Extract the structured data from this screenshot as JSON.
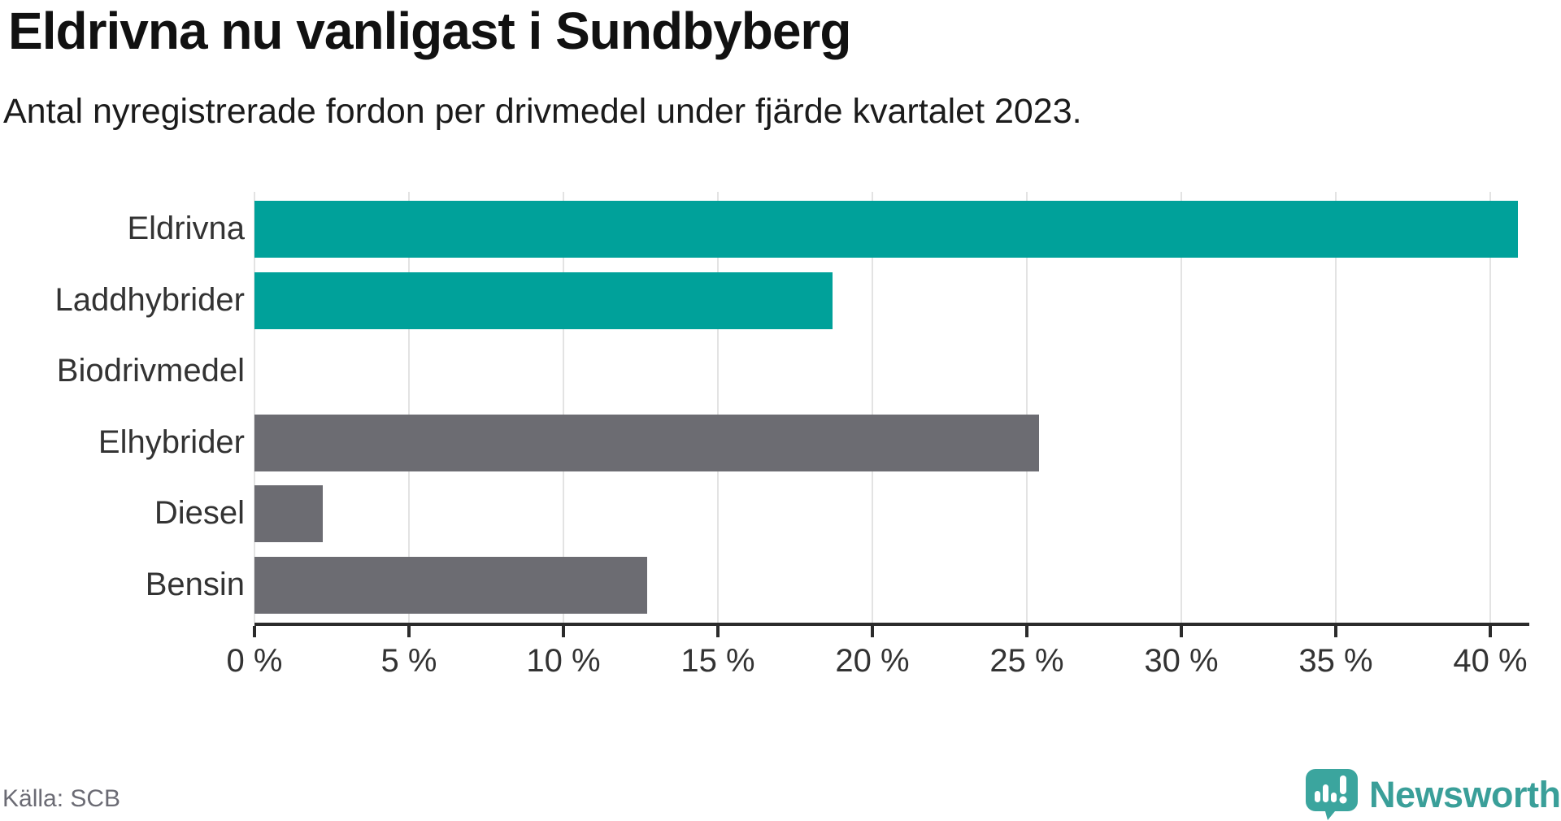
{
  "header": {
    "title": "Eldrivna nu vanligast i Sundbyberg",
    "subtitle": "Antal nyregistrerade fordon per drivmedel under fjärde kvartalet 2023."
  },
  "footer": {
    "source": "Källa: SCB",
    "brand_name": "Newsworthy"
  },
  "colors": {
    "highlight": "#00a19a",
    "default": "#6c6c72",
    "gridline": "#e3e3e3",
    "axis": "#2b2b2b",
    "brand_teal": "#3a9f99",
    "brand_icon_teal": "#3ba59e"
  },
  "chart_data": {
    "type": "bar",
    "orientation": "horizontal",
    "title": "Eldrivna nu vanligast i Sundbyberg",
    "subtitle": "Antal nyregistrerade fordon per drivmedel under fjärde kvartalet 2023.",
    "categories": [
      "Eldrivna",
      "Laddhybrider",
      "Biodrivmedel",
      "Elhybrider",
      "Diesel",
      "Bensin"
    ],
    "values": [
      40.9,
      18.7,
      0,
      25.4,
      2.2,
      12.7
    ],
    "series_colors": [
      "highlight",
      "highlight",
      "default",
      "default",
      "default",
      "default"
    ],
    "xlabel": "",
    "ylabel": "",
    "xlim": [
      0,
      40
    ],
    "xticks": [
      0,
      5,
      10,
      15,
      20,
      25,
      30,
      35,
      40
    ],
    "xtick_suffix": " %",
    "grid": true,
    "legend": false
  }
}
